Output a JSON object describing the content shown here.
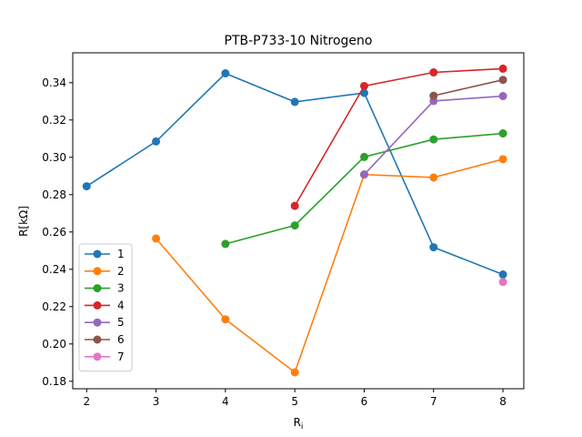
{
  "chart_data": {
    "type": "line",
    "title": "PTB-P733-10 Nitrogeno",
    "xlabel": "R_i",
    "ylabel": "R[kΩ]",
    "xlim": [
      1.8,
      8.3
    ],
    "ylim": [
      0.176,
      0.356
    ],
    "xticks": [
      2,
      3,
      4,
      5,
      6,
      7,
      8
    ],
    "yticks": [
      0.18,
      0.2,
      0.22,
      0.24,
      0.26,
      0.28,
      0.3,
      0.32,
      0.34
    ],
    "grid": false,
    "legend_position": "lower-left",
    "series": [
      {
        "name": "1",
        "color": "#1f77b4",
        "points": [
          [
            2,
            0.2845
          ],
          [
            3,
            0.3085
          ],
          [
            4,
            0.345
          ],
          [
            5,
            0.3297
          ],
          [
            6,
            0.3345
          ],
          [
            7,
            0.2518
          ],
          [
            8,
            0.2372
          ]
        ]
      },
      {
        "name": "2",
        "color": "#ff7f0e",
        "points": [
          [
            3,
            0.2565
          ],
          [
            4,
            0.2132
          ],
          [
            5,
            0.1848
          ],
          [
            6,
            0.2908
          ],
          [
            7,
            0.2892
          ],
          [
            8,
            0.299
          ]
        ]
      },
      {
        "name": "3",
        "color": "#2ca02c",
        "points": [
          [
            4,
            0.2536
          ],
          [
            5,
            0.2635
          ],
          [
            6,
            0.3002
          ],
          [
            7,
            0.3096
          ],
          [
            8,
            0.3128
          ]
        ]
      },
      {
        "name": "4",
        "color": "#d62728",
        "points": [
          [
            5,
            0.274
          ],
          [
            6,
            0.3382
          ],
          [
            7,
            0.3455
          ],
          [
            8,
            0.3475
          ]
        ]
      },
      {
        "name": "5",
        "color": "#9467bd",
        "points": [
          [
            6,
            0.2908
          ],
          [
            7,
            0.3302
          ],
          [
            8,
            0.3328
          ]
        ]
      },
      {
        "name": "6",
        "color": "#8c564b",
        "points": [
          [
            7,
            0.333
          ],
          [
            8,
            0.3415
          ]
        ]
      },
      {
        "name": "7",
        "color": "#e377c2",
        "points": [
          [
            8,
            0.2332
          ]
        ]
      }
    ]
  }
}
